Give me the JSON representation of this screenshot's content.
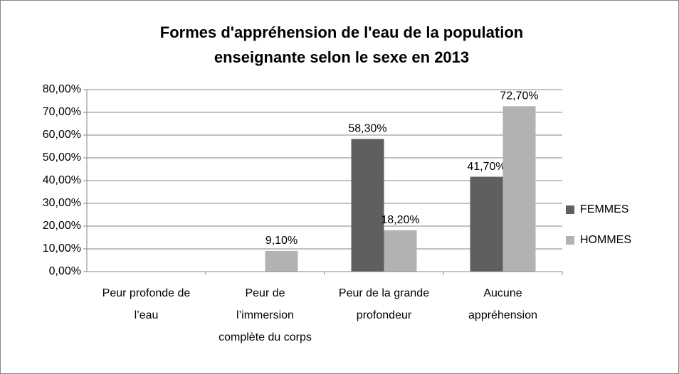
{
  "chart_data": {
    "type": "bar",
    "title": "Formes d'appréhension de l'eau de la population enseignante selon le sexe en 2013",
    "categories": [
      "Peur profonde de l’eau",
      "Peur de l’immersion complète du corps",
      "Peur de la grande profondeur",
      "Aucune appréhension"
    ],
    "series": [
      {
        "name": "FEMMES",
        "color": "#5f5f5f",
        "values": [
          0,
          0,
          58.3,
          41.7
        ],
        "value_labels": [
          null,
          null,
          "58,30%",
          "41,70%"
        ]
      },
      {
        "name": "HOMMES",
        "color": "#b2b2b2",
        "values": [
          0,
          9.1,
          18.2,
          72.7
        ],
        "value_labels": [
          null,
          "9,10%",
          "18,20%",
          "72,70%"
        ]
      }
    ],
    "ylim": [
      0,
      80
    ],
    "yticks": [
      {
        "value": 0,
        "label": "0,00%"
      },
      {
        "value": 10,
        "label": "10,00%"
      },
      {
        "value": 20,
        "label": "20,00%"
      },
      {
        "value": 30,
        "label": "30,00%"
      },
      {
        "value": 40,
        "label": "40,00%"
      },
      {
        "value": 50,
        "label": "50,00%"
      },
      {
        "value": 60,
        "label": "60,00%"
      },
      {
        "value": 70,
        "label": "70,00%"
      },
      {
        "value": 80,
        "label": "80,00%"
      }
    ],
    "grid": true,
    "legend": "right"
  }
}
